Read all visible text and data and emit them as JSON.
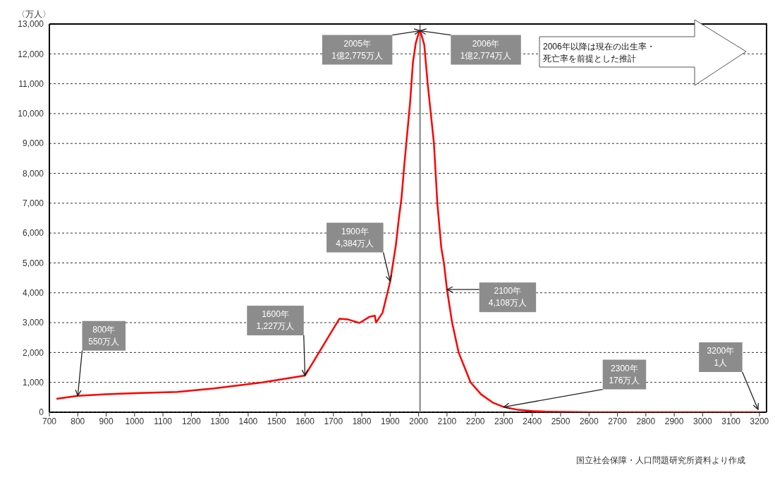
{
  "chart_data": {
    "type": "line",
    "ylabel": "〈万人〉",
    "x": [
      725,
      800,
      900,
      1000,
      1150,
      1280,
      1450,
      1600,
      1721,
      1750,
      1792,
      1828,
      1846,
      1850,
      1873,
      1890,
      1900,
      1920,
      1930,
      1940,
      1950,
      1960,
      1970,
      1980,
      1990,
      2000,
      2005,
      2006,
      2020,
      2032,
      2054,
      2066,
      2080,
      2089,
      2100,
      2118,
      2141,
      2183,
      2220,
      2260,
      2300,
      2350,
      2400,
      2450,
      2500,
      2600,
      2800,
      3000,
      3200
    ],
    "series": [
      {
        "color": "#ff0000",
        "values": [
          450,
          550,
          600,
          640,
          680,
          800,
          1000,
          1227,
          3130,
          3110,
          2990,
          3200,
          3230,
          3000,
          3330,
          3990,
          4384,
          5600,
          6450,
          7190,
          8320,
          9340,
          10370,
          11710,
          12360,
          12690,
          12775,
          12774,
          12300,
          11000,
          9000,
          7000,
          5500,
          5000,
          4108,
          3000,
          2000,
          1000,
          600,
          330,
          176,
          80,
          40,
          20,
          10,
          0,
          0,
          0,
          0.0001
        ]
      }
    ],
    "xlim": [
      700,
      3225
    ],
    "xticks": [
      700,
      800,
      900,
      1000,
      1100,
      1200,
      1300,
      1400,
      1500,
      1600,
      1700,
      1800,
      1900,
      2000,
      2100,
      2200,
      2300,
      2400,
      2500,
      2600,
      2700,
      2800,
      2900,
      3000,
      3100,
      3200
    ],
    "ylim": [
      0,
      13000
    ],
    "yticks": [
      {
        "value": 0,
        "label": "0"
      },
      {
        "value": 1000,
        "label": "1,000"
      },
      {
        "value": 2000,
        "label": "2,000"
      },
      {
        "value": 3000,
        "label": "3,000"
      },
      {
        "value": 4000,
        "label": "4,000"
      },
      {
        "value": 5000,
        "label": "5,000"
      },
      {
        "value": 6000,
        "label": "6,000"
      },
      {
        "value": 7000,
        "label": "7,000"
      },
      {
        "value": 8000,
        "label": "8,000"
      },
      {
        "value": 9000,
        "label": "9,000"
      },
      {
        "value": 10000,
        "label": "10,000"
      },
      {
        "value": 11000,
        "label": "11,000"
      },
      {
        "value": 12000,
        "label": "12,000"
      },
      {
        "value": 13000,
        "label": "13,000"
      }
    ],
    "grid": "y",
    "ref_lines": [
      {
        "axis": "x",
        "value": 2005,
        "color": "#808080"
      }
    ],
    "annotations": [
      {
        "text": "800年\n550万人",
        "x": 800,
        "y": 550
      },
      {
        "text": "1600年\n1,227万人",
        "x": 1600,
        "y": 1227
      },
      {
        "text": "1900年\n4,384万人",
        "x": 1900,
        "y": 4384
      },
      {
        "text": "2005年\n1億2,775万人",
        "x": 2005,
        "y": 12775
      },
      {
        "text": "2006年\n1億2,774万人",
        "x": 2006,
        "y": 12774
      },
      {
        "text": "2100年\n4,108万人",
        "x": 2100,
        "y": 4108
      },
      {
        "text": "2300年\n176万人",
        "x": 2300,
        "y": 176
      },
      {
        "text": "3200年\n1人",
        "x": 3200,
        "y": 0.0001
      },
      "2006年以降は現在の出生率・死亡率を前提とした推計",
      "国立社会保障・人口問題研究所資料より作成"
    ]
  }
}
